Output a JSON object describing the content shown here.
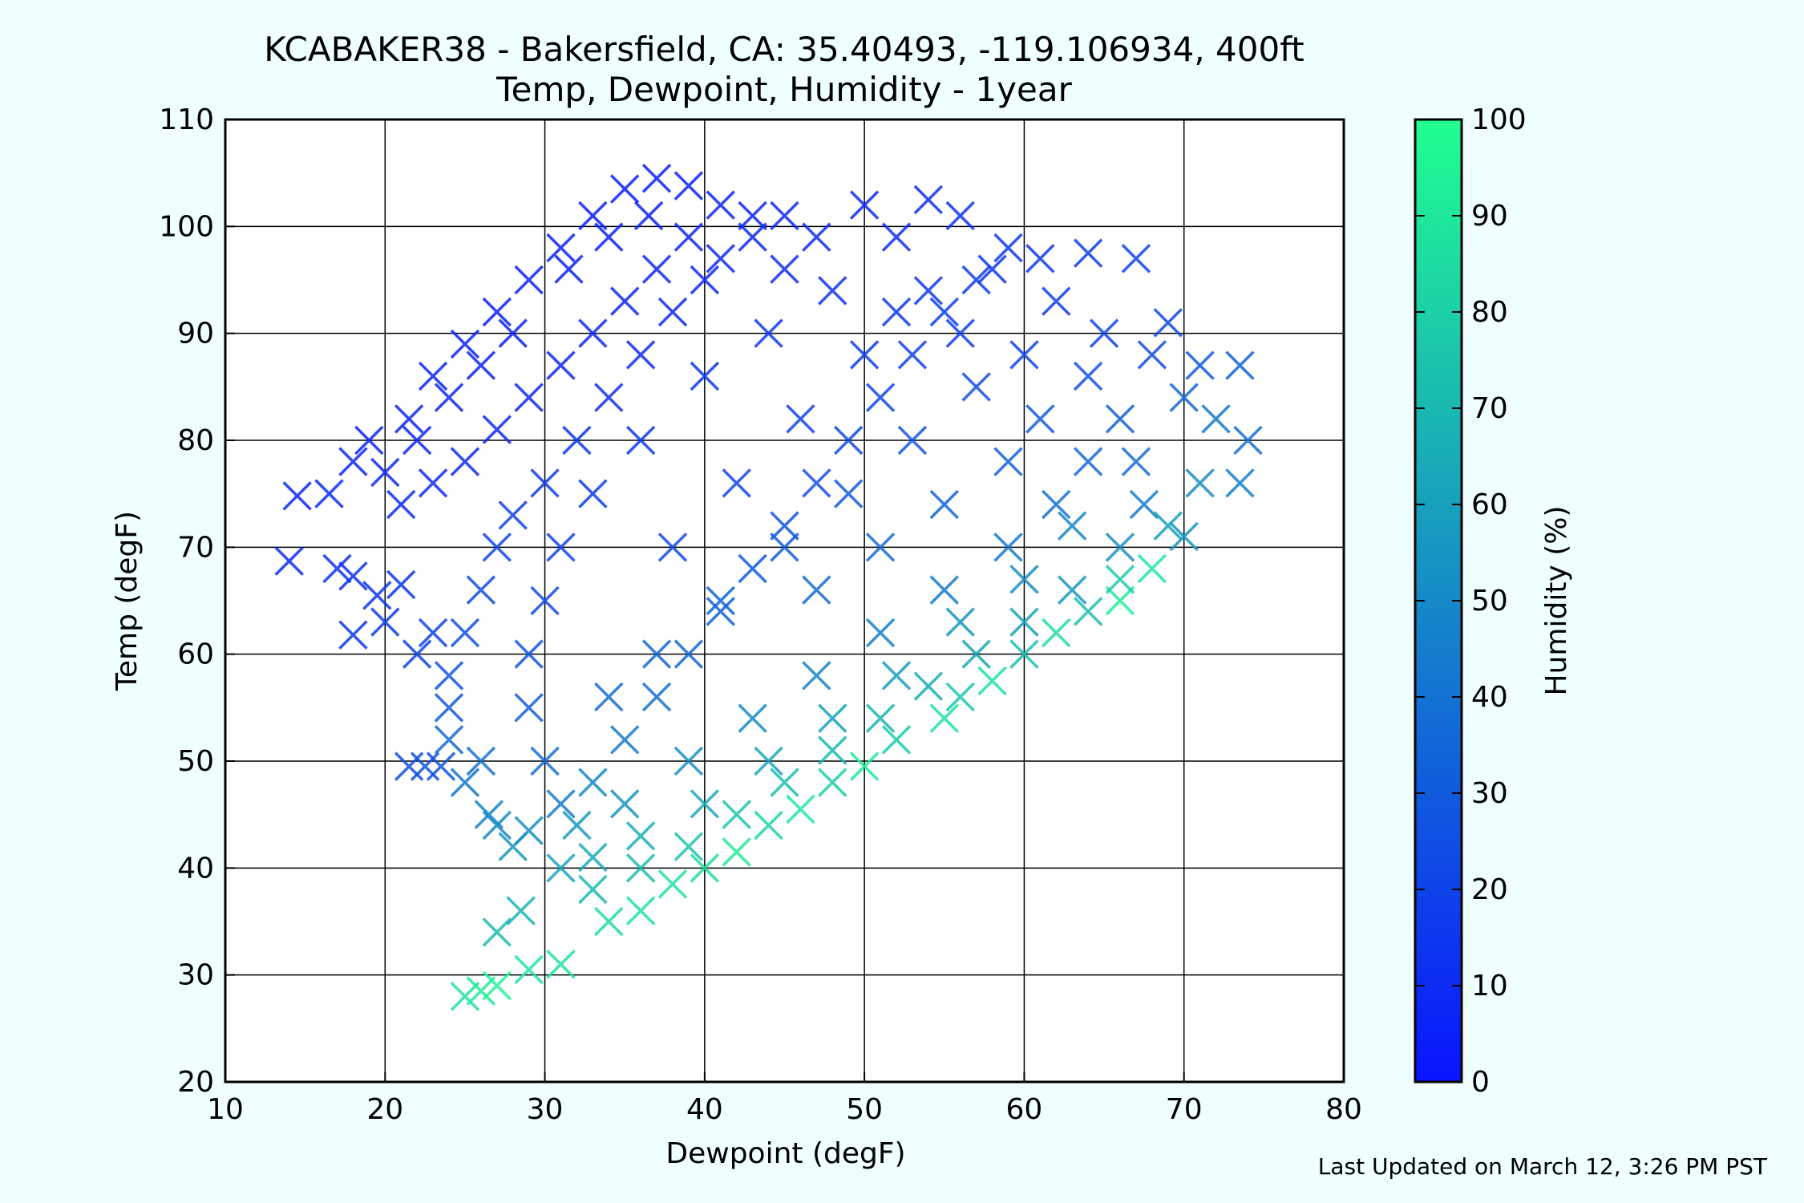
{
  "chart_data": {
    "type": "scatter",
    "title_line1": "KCABAKER38 - Bakersfield, CA: 35.40493, -119.106934, 400ft",
    "title_line2": "Temp, Dewpoint, Humidity - 1year",
    "xlabel": "Dewpoint (degF)",
    "ylabel": "Temp (degF)",
    "xlim": [
      10,
      80
    ],
    "ylim": [
      20,
      110
    ],
    "xticks": [
      "10",
      "20",
      "30",
      "40",
      "50",
      "60",
      "70",
      "80"
    ],
    "yticks": [
      "20",
      "30",
      "40",
      "50",
      "60",
      "70",
      "80",
      "90",
      "100",
      "110"
    ],
    "grid": true,
    "marker": "x",
    "colorbar": {
      "label": "Humidity (%)",
      "range": [
        0,
        100
      ],
      "ticks": [
        "0",
        "10",
        "20",
        "30",
        "40",
        "50",
        "60",
        "70",
        "80",
        "90",
        "100"
      ],
      "colors": [
        "#0a14ff",
        "#20ff90"
      ]
    },
    "points": [
      [
        14,
        68.7,
        10
      ],
      [
        14.5,
        74.8,
        9
      ],
      [
        16.5,
        75,
        10
      ],
      [
        17,
        68,
        12
      ],
      [
        18,
        67.3,
        13
      ],
      [
        18,
        61.8,
        16
      ],
      [
        19.5,
        65.5,
        14
      ],
      [
        20,
        63,
        17
      ],
      [
        21,
        66.5,
        15
      ],
      [
        21.5,
        49.5,
        25
      ],
      [
        22.5,
        49.5,
        26
      ],
      [
        23.5,
        49.5,
        27
      ],
      [
        25,
        28,
        88
      ],
      [
        26,
        28.5,
        92
      ],
      [
        27,
        29,
        95
      ],
      [
        21.5,
        82,
        8
      ],
      [
        23,
        86,
        8
      ],
      [
        25,
        89,
        7
      ],
      [
        27,
        92,
        6
      ],
      [
        29,
        95,
        6
      ],
      [
        31,
        98,
        6
      ],
      [
        33,
        101,
        5
      ],
      [
        35,
        103.5,
        5
      ],
      [
        37,
        104.5,
        6
      ],
      [
        39,
        103.8,
        6
      ],
      [
        41,
        102,
        8
      ],
      [
        43,
        101,
        8
      ],
      [
        45,
        101,
        9
      ],
      [
        50,
        102,
        11
      ],
      [
        54,
        102.5,
        12
      ],
      [
        56,
        101,
        13
      ],
      [
        59,
        98,
        15
      ],
      [
        61,
        97,
        17
      ],
      [
        64,
        97.5,
        18
      ],
      [
        67,
        97,
        20
      ],
      [
        69,
        91,
        24
      ],
      [
        71,
        87,
        30
      ],
      [
        73.5,
        87,
        33
      ],
      [
        74,
        80,
        39
      ],
      [
        73.5,
        76,
        46
      ],
      [
        70,
        71,
        55
      ],
      [
        68,
        68,
        90
      ],
      [
        66,
        65,
        92
      ],
      [
        62,
        62,
        85
      ],
      [
        58,
        57.5,
        88
      ],
      [
        55,
        54,
        88
      ],
      [
        50,
        49.5,
        92
      ],
      [
        46,
        45.5,
        90
      ],
      [
        42,
        41.5,
        92
      ],
      [
        38,
        38.5,
        88
      ],
      [
        34,
        35,
        85
      ],
      [
        31,
        31,
        88
      ],
      [
        29,
        30.5,
        90
      ],
      [
        27,
        34,
        70
      ],
      [
        28.5,
        36,
        68
      ],
      [
        28,
        42,
        55
      ],
      [
        29,
        43.5,
        52
      ],
      [
        26.5,
        45,
        48
      ],
      [
        26,
        50,
        40
      ],
      [
        24,
        52,
        36
      ],
      [
        24,
        58,
        28
      ],
      [
        25,
        62,
        26
      ],
      [
        26,
        66,
        24
      ],
      [
        27,
        70,
        22
      ],
      [
        28,
        73,
        20
      ],
      [
        30,
        76,
        18
      ],
      [
        32,
        80,
        14
      ],
      [
        34,
        84,
        12
      ],
      [
        36,
        88,
        11
      ],
      [
        38,
        92,
        10
      ],
      [
        40,
        95,
        10
      ],
      [
        45,
        96,
        12
      ],
      [
        48,
        94,
        14
      ],
      [
        52,
        92,
        16
      ],
      [
        56,
        90,
        19
      ],
      [
        60,
        88,
        22
      ],
      [
        64,
        86,
        26
      ],
      [
        66,
        82,
        32
      ],
      [
        67,
        78,
        38
      ],
      [
        67.5,
        74,
        45
      ],
      [
        66,
        70,
        52
      ],
      [
        63,
        66,
        56
      ],
      [
        60,
        63,
        60
      ],
      [
        57,
        60,
        62
      ],
      [
        54,
        57,
        65
      ],
      [
        51,
        54,
        68
      ],
      [
        48,
        51,
        70
      ],
      [
        45,
        48,
        72
      ],
      [
        42,
        45,
        75
      ],
      [
        39,
        42,
        75
      ],
      [
        36,
        40,
        72
      ],
      [
        33,
        38,
        70
      ],
      [
        31,
        40,
        62
      ],
      [
        32,
        44,
        56
      ],
      [
        33,
        48,
        50
      ],
      [
        35,
        52,
        44
      ],
      [
        37,
        56,
        40
      ],
      [
        39,
        60,
        36
      ],
      [
        41,
        64,
        33
      ],
      [
        43,
        68,
        30
      ],
      [
        45,
        72,
        28
      ],
      [
        47,
        76,
        26
      ],
      [
        49,
        80,
        24
      ],
      [
        51,
        84,
        22
      ],
      [
        53,
        88,
        21
      ],
      [
        55,
        92,
        19
      ],
      [
        57,
        95,
        18
      ],
      [
        44,
        90,
        16
      ],
      [
        40,
        86,
        15
      ],
      [
        36,
        80,
        16
      ],
      [
        33,
        75,
        18
      ],
      [
        31,
        70,
        21
      ],
      [
        30,
        65,
        24
      ],
      [
        29,
        60,
        28
      ],
      [
        29,
        55,
        32
      ],
      [
        30,
        50,
        38
      ],
      [
        31,
        46,
        44
      ],
      [
        35,
        46,
        54
      ],
      [
        39,
        50,
        52
      ],
      [
        43,
        54,
        50
      ],
      [
        47,
        58,
        48
      ],
      [
        51,
        62,
        46
      ],
      [
        55,
        66,
        44
      ],
      [
        59,
        70,
        42
      ],
      [
        62,
        74,
        40
      ],
      [
        64,
        78,
        36
      ],
      [
        61,
        82,
        30
      ],
      [
        57,
        85,
        26
      ],
      [
        53,
        80,
        28
      ],
      [
        49,
        75,
        30
      ],
      [
        45,
        70,
        32
      ],
      [
        41,
        65,
        34
      ],
      [
        37,
        60,
        36
      ],
      [
        34,
        56,
        38
      ],
      [
        38,
        70,
        24
      ],
      [
        42,
        76,
        22
      ],
      [
        46,
        82,
        20
      ],
      [
        50,
        88,
        18
      ],
      [
        54,
        94,
        16
      ],
      [
        47,
        66,
        38
      ],
      [
        51,
        70,
        37
      ],
      [
        55,
        74,
        35
      ],
      [
        59,
        78,
        33
      ],
      [
        63,
        72,
        48
      ],
      [
        60,
        67,
        52
      ],
      [
        56,
        63,
        55
      ],
      [
        52,
        58,
        58
      ],
      [
        48,
        54,
        60
      ],
      [
        44,
        50,
        62
      ],
      [
        40,
        46,
        64
      ],
      [
        36,
        43,
        66
      ],
      [
        33,
        41,
        64
      ],
      [
        36,
        36,
        88
      ],
      [
        40,
        40,
        85
      ],
      [
        44,
        44,
        82
      ],
      [
        48,
        48,
        80
      ],
      [
        52,
        52,
        78
      ],
      [
        56,
        56,
        76
      ],
      [
        60,
        60,
        74
      ],
      [
        64,
        64,
        72
      ],
      [
        66,
        67,
        78
      ],
      [
        69,
        72,
        60
      ],
      [
        71,
        76,
        52
      ],
      [
        72,
        82,
        42
      ],
      [
        70,
        84,
        36
      ],
      [
        31.5,
        96,
        6
      ],
      [
        34,
        99,
        6
      ],
      [
        36.5,
        101,
        6
      ],
      [
        28,
        90,
        7
      ],
      [
        26,
        87,
        8
      ],
      [
        24,
        84,
        8
      ],
      [
        22,
        80,
        9
      ],
      [
        20,
        77,
        10
      ],
      [
        18,
        78,
        9
      ],
      [
        19,
        80,
        8
      ],
      [
        21,
        74,
        11
      ],
      [
        23,
        76,
        10
      ],
      [
        25,
        78,
        10
      ],
      [
        27,
        81,
        9
      ],
      [
        29,
        84,
        9
      ],
      [
        31,
        87,
        9
      ],
      [
        33,
        90,
        9
      ],
      [
        35,
        93,
        9
      ],
      [
        37,
        96,
        9
      ],
      [
        39,
        99,
        9
      ],
      [
        41,
        97,
        10
      ],
      [
        43,
        99,
        10
      ],
      [
        47,
        99,
        11
      ],
      [
        52,
        99,
        12
      ],
      [
        58,
        96,
        15
      ],
      [
        62,
        93,
        19
      ],
      [
        65,
        90,
        22
      ],
      [
        68,
        88,
        26
      ],
      [
        23,
        62,
        20
      ],
      [
        22,
        60,
        20
      ],
      [
        24,
        55,
        30
      ],
      [
        25,
        48,
        42
      ],
      [
        27,
        44,
        50
      ]
    ]
  }
}
